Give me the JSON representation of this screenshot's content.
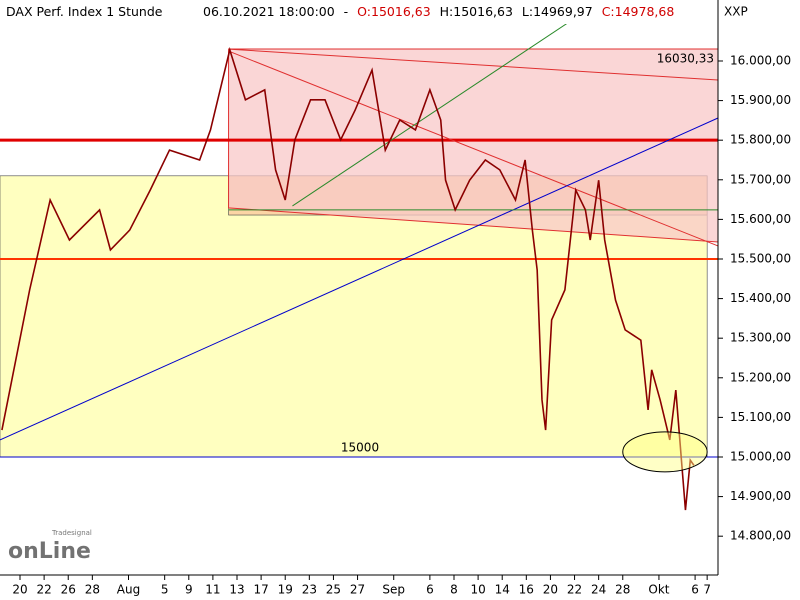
{
  "chart_data": {
    "type": "line",
    "header": {
      "title": "DAX Perf. Index 1 Stunde",
      "datetime": "06.10.2021 18:00:00",
      "separator": "-",
      "open": "O:15016,63",
      "high": "H:15016,63",
      "low": "L:14969,97",
      "close": "C:14978,68"
    },
    "exchange": "XXP",
    "logo": {
      "brand": "Tradesignal",
      "name": "onLine"
    },
    "x": [
      -0.5,
      1.8,
      3.5,
      5.1,
      7.6,
      8.5,
      10.1,
      11.8,
      13.4,
      15.9,
      16.8,
      17.6,
      18.4,
      19.7,
      21.3,
      22.2,
      23,
      23.8,
      25.1,
      26.3,
      27.6,
      28.8,
      30.2,
      31.3,
      32.5,
      33.8,
      35,
      35.9,
      36.3,
      37.1,
      38.3,
      39.6,
      40.8,
      42.1,
      42.9,
      43.5,
      43.9,
      44.3,
      44.6,
      45.1,
      46.2,
      47.1,
      47.9,
      48.3,
      49,
      49.5,
      50.4,
      51.2,
      52.5,
      53.1,
      53.4,
      54.1,
      54.9,
      55.4,
      56,
      56.2,
      56.6,
      56.9
    ],
    "series": [
      {
        "name": "DAX Perf. Index",
        "color": "#8b0000",
        "values": [
          15068,
          15422,
          15649,
          15548,
          15624,
          15523,
          15573,
          15674,
          15775,
          15750,
          15826,
          15927,
          16028,
          15902,
          15927,
          15725,
          15649,
          15801,
          15902,
          15902,
          15801,
          15876,
          15977,
          15775,
          15851,
          15826,
          15927,
          15851,
          15699,
          15624,
          15699,
          15750,
          15725,
          15649,
          15750,
          15573,
          15472,
          15144,
          15068,
          15346,
          15422,
          15674,
          15624,
          15548,
          15699,
          15548,
          15396,
          15321,
          15295,
          15119,
          15220,
          15144,
          15043,
          15169,
          14942,
          14866,
          14992,
          14979
        ]
      }
    ],
    "xlim": [
      -0.66,
      58.9
    ],
    "ylim": [
      14702,
      16154
    ],
    "xticks": [
      {
        "value": 1,
        "label": "20"
      },
      {
        "value": 3,
        "label": "22"
      },
      {
        "value": 5,
        "label": "26"
      },
      {
        "value": 7,
        "label": "28"
      },
      {
        "value": 10,
        "label": "Aug"
      },
      {
        "value": 13,
        "label": "5"
      },
      {
        "value": 15,
        "label": "9"
      },
      {
        "value": 17,
        "label": "11"
      },
      {
        "value": 19,
        "label": "13"
      },
      {
        "value": 21,
        "label": "17"
      },
      {
        "value": 23,
        "label": "19"
      },
      {
        "value": 25,
        "label": "23"
      },
      {
        "value": 27,
        "label": "25"
      },
      {
        "value": 29,
        "label": "27"
      },
      {
        "value": 32,
        "label": "Sep"
      },
      {
        "value": 35,
        "label": "6"
      },
      {
        "value": 37,
        "label": "8"
      },
      {
        "value": 39,
        "label": "10"
      },
      {
        "value": 41,
        "label": "14"
      },
      {
        "value": 43,
        "label": "16"
      },
      {
        "value": 45,
        "label": "20"
      },
      {
        "value": 47,
        "label": "22"
      },
      {
        "value": 49,
        "label": "24"
      },
      {
        "value": 51,
        "label": "28"
      },
      {
        "value": 54,
        "label": "Okt"
      },
      {
        "value": 57,
        "label": "6"
      },
      {
        "value": 58,
        "label": "7"
      }
    ],
    "yticks": [
      {
        "value": 14800,
        "label": "14.800,00"
      },
      {
        "value": 14900,
        "label": "14.900,00"
      },
      {
        "value": 15000,
        "label": "15.000,00"
      },
      {
        "value": 15100,
        "label": "15.100,00"
      },
      {
        "value": 15200,
        "label": "15.200,00"
      },
      {
        "value": 15300,
        "label": "15.300,00"
      },
      {
        "value": 15400,
        "label": "15.400,00"
      },
      {
        "value": 15500,
        "label": "15.500,00"
      },
      {
        "value": 15600,
        "label": "15.600,00"
      },
      {
        "value": 15700,
        "label": "15.700,00"
      },
      {
        "value": 15800,
        "label": "15.800,00"
      },
      {
        "value": 15900,
        "label": "15.900,00"
      },
      {
        "value": 16000,
        "label": "16.000,00"
      }
    ],
    "zones": [
      {
        "color": "#ffffc0",
        "x": [
          -0.66,
          58
        ],
        "y": [
          15000,
          15710
        ]
      },
      {
        "color": "#f9c39a",
        "x": [
          18.3,
          58
        ],
        "y": [
          15611,
          15710
        ]
      }
    ],
    "channel": {
      "color": "#f8c8c8",
      "x": [
        18.3,
        58.9
      ],
      "top": [
        16030.33,
        16030.33
      ],
      "bottom": [
        15629,
        15543
      ]
    },
    "trendlines": [
      {
        "color": "#e03030",
        "x": [
          18.3,
          58.9
        ],
        "y": [
          16030,
          15952
        ]
      },
      {
        "color": "#e03030",
        "x": [
          18.3,
          58.9
        ],
        "y": [
          16025,
          15533
        ]
      },
      {
        "color": "#0000cc",
        "x": [
          -0.66,
          58.9
        ],
        "y": [
          15043,
          15856
        ]
      },
      {
        "color": "#2a8a2a",
        "x": [
          23.6,
          49.3
        ],
        "y": [
          15634,
          16154
        ]
      },
      {
        "color": "#2a8a2a",
        "x": [
          18.3,
          58.9
        ],
        "y": [
          15624,
          15624
        ]
      }
    ],
    "levels": [
      {
        "value": 15800,
        "color": "#e00000",
        "width": 3
      },
      {
        "value": 15500,
        "color": "#ff3300",
        "width": 2
      },
      {
        "value": 15000,
        "color": "#0000cc",
        "width": 1,
        "label": 15000
      },
      {
        "value": 16030.33,
        "color": "#e03030",
        "width": 1,
        "label": "16030,33"
      }
    ],
    "ellipse": {
      "color": "#ffff80",
      "cx": 54.5,
      "cy": 15013,
      "rx": 3.5,
      "ry": 50.5
    }
  }
}
